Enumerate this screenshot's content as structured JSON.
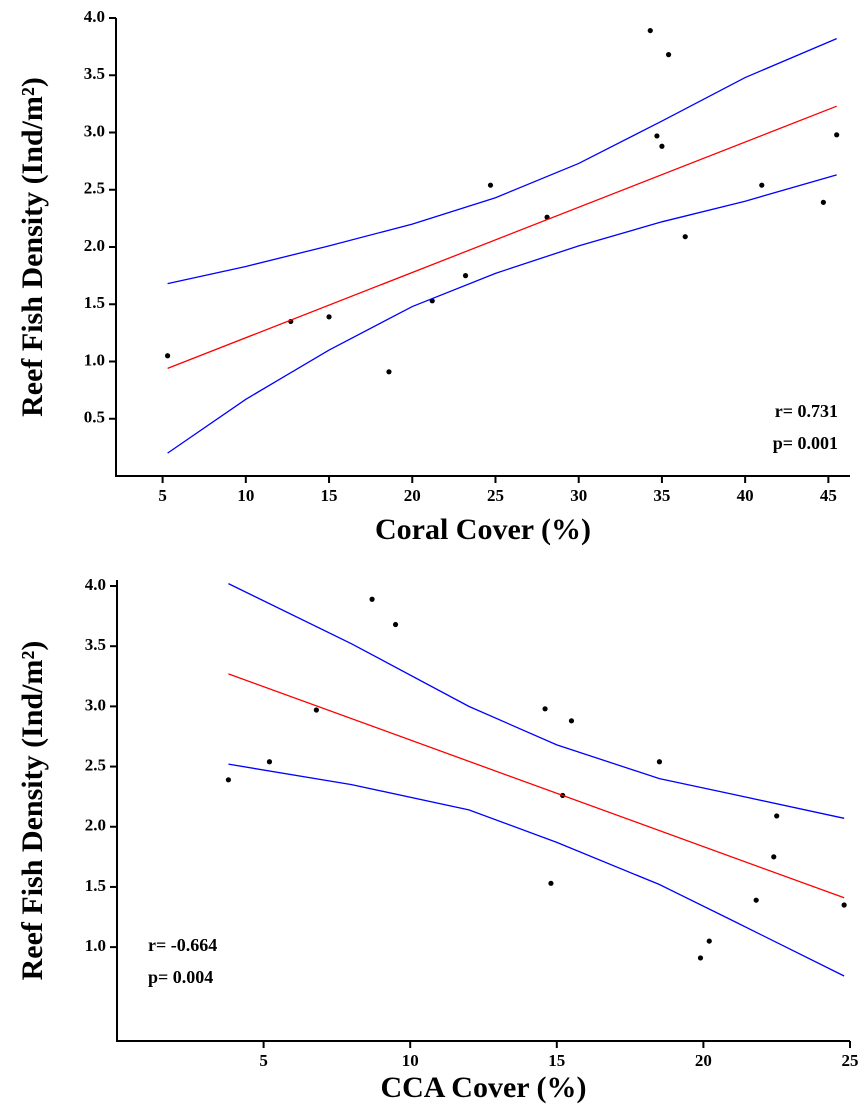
{
  "chart_data": [
    {
      "type": "scatter",
      "x_label": "Coral Cover (%)",
      "y_label": "Reef Fish Density (Ind/m²)",
      "xlim": [
        2.2,
        46.3
      ],
      "xticks": [
        5,
        10,
        15,
        20,
        25,
        30,
        35,
        40,
        45
      ],
      "ylim": [
        0,
        4.0
      ],
      "yticks": [
        0.5,
        {
          "value": 1,
          "label": "1.0"
        },
        1.5,
        {
          "value": 2,
          "label": "2.0"
        },
        2.5,
        {
          "value": 3,
          "label": "3.0"
        },
        3.5,
        {
          "value": 4,
          "label": "4.0"
        }
      ],
      "annotations": [
        "r= 0.731",
        "p= 0.001"
      ],
      "series": [
        {
          "color": "#000000",
          "x": [
            5.3,
            12.7,
            15.0,
            18.6,
            21.2,
            23.2,
            24.7,
            28.1,
            34.3,
            34.7,
            35.0,
            35.4,
            36.4,
            41.0,
            44.7,
            45.5
          ],
          "values": [
            1.05,
            1.35,
            1.39,
            0.91,
            1.53,
            1.75,
            2.54,
            2.26,
            3.89,
            2.97,
            2.88,
            3.68,
            2.09,
            2.54,
            2.39,
            2.98
          ]
        },
        {
          "type": "line",
          "color": "#ff0000",
          "x": [
            5.3,
            45.5
          ],
          "values": [
            0.94,
            3.23
          ]
        },
        {
          "type": "line",
          "color": "#0000ff",
          "x": [
            5.3,
            10,
            15,
            20,
            25,
            30,
            35,
            40,
            45.5
          ],
          "values": [
            1.68,
            1.83,
            2.01,
            2.2,
            2.43,
            2.73,
            3.1,
            3.48,
            3.82
          ]
        },
        {
          "type": "line",
          "color": "#0000ff",
          "x": [
            5.3,
            10,
            15,
            20,
            25,
            30,
            35,
            40,
            45.5
          ],
          "values": [
            0.2,
            0.67,
            1.1,
            1.48,
            1.77,
            2.01,
            2.22,
            2.4,
            2.63
          ]
        }
      ]
    },
    {
      "type": "scatter",
      "x_label": "CCA Cover (%)",
      "y_label": "Reef Fish Density (Ind/m²)",
      "xlim": [
        0,
        25
      ],
      "xticks": [
        5,
        10,
        15,
        20,
        25
      ],
      "ylim": [
        0.22,
        4.05
      ],
      "yticks": [
        {
          "value": 1,
          "label": "1.0"
        },
        1.5,
        {
          "value": 2,
          "label": "2.0"
        },
        2.5,
        {
          "value": 3,
          "label": "3.0"
        },
        3.5,
        {
          "value": 4,
          "label": "4.0"
        }
      ],
      "annotations": [
        "r= -0.664",
        "p= 0.004"
      ],
      "series": [
        {
          "color": "#000000",
          "x": [
            3.8,
            5.2,
            6.8,
            8.7,
            9.5,
            14.6,
            14.8,
            15.2,
            15.5,
            18.5,
            19.9,
            20.2,
            21.8,
            22.4,
            22.5,
            24.8
          ],
          "values": [
            2.39,
            2.54,
            2.97,
            3.89,
            3.68,
            2.98,
            1.53,
            2.26,
            2.88,
            2.54,
            0.91,
            1.05,
            1.39,
            1.75,
            2.09,
            1.35
          ]
        },
        {
          "type": "line",
          "color": "#ff0000",
          "x": [
            3.8,
            24.8
          ],
          "values": [
            3.27,
            1.41
          ]
        },
        {
          "type": "line",
          "color": "#0000ff",
          "x": [
            3.8,
            8,
            12,
            15,
            18.5,
            21,
            24.8
          ],
          "values": [
            4.02,
            3.52,
            3.0,
            2.68,
            2.4,
            2.27,
            2.07
          ]
        },
        {
          "type": "line",
          "color": "#0000ff",
          "x": [
            3.8,
            8,
            12,
            15,
            18.5,
            21,
            24.8
          ],
          "values": [
            2.52,
            2.35,
            2.14,
            1.87,
            1.52,
            1.22,
            0.76
          ]
        }
      ]
    }
  ]
}
